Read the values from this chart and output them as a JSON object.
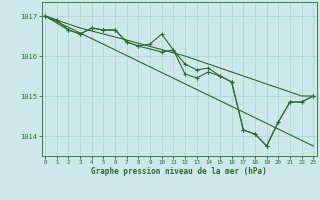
{
  "title": "Graphe pression niveau de la mer (hPa)",
  "background_color": "#cce8e8",
  "line_color": "#2d6a2d",
  "grid_color": "#b0d0d0",
  "series1": [
    [
      0,
      1017.0
    ],
    [
      1,
      1016.9
    ],
    [
      2,
      1016.65
    ],
    [
      3,
      1016.55
    ],
    [
      4,
      1016.7
    ],
    [
      5,
      1016.65
    ],
    [
      6,
      1016.65
    ],
    [
      7,
      1016.35
    ],
    [
      8,
      1016.25
    ],
    [
      9,
      1016.3
    ],
    [
      10,
      1016.55
    ],
    [
      11,
      1016.15
    ],
    [
      12,
      1015.8
    ],
    [
      13,
      1015.65
    ],
    [
      14,
      1015.7
    ],
    [
      15,
      1015.5
    ],
    [
      16,
      1015.35
    ],
    [
      17,
      1014.15
    ],
    [
      18,
      1014.05
    ],
    [
      19,
      1013.75
    ],
    [
      20,
      1014.35
    ],
    [
      21,
      1014.85
    ],
    [
      22,
      1014.85
    ],
    [
      23,
      1015.0
    ]
  ],
  "series2": [
    [
      0,
      1017.0
    ],
    [
      2,
      1016.65
    ],
    [
      3,
      1016.55
    ],
    [
      4,
      1016.7
    ],
    [
      5,
      1016.65
    ],
    [
      6,
      1016.65
    ],
    [
      7,
      1016.35
    ],
    [
      8,
      1016.25
    ],
    [
      10,
      1016.1
    ],
    [
      11,
      1016.15
    ],
    [
      12,
      1015.55
    ],
    [
      13,
      1015.45
    ],
    [
      14,
      1015.6
    ],
    [
      15,
      1015.5
    ],
    [
      16,
      1015.35
    ],
    [
      17,
      1014.15
    ],
    [
      18,
      1014.05
    ],
    [
      19,
      1013.75
    ],
    [
      20,
      1014.35
    ],
    [
      21,
      1014.85
    ],
    [
      22,
      1014.85
    ],
    [
      23,
      1015.0
    ]
  ],
  "series3_smooth": [
    [
      0,
      1017.0
    ],
    [
      3,
      1016.7
    ],
    [
      7,
      1016.4
    ],
    [
      12,
      1016.0
    ],
    [
      17,
      1015.5
    ],
    [
      22,
      1015.0
    ],
    [
      23,
      1015.0
    ]
  ],
  "series4_diagonal": [
    [
      0,
      1017.0
    ],
    [
      23,
      1013.75
    ]
  ],
  "ylim": [
    1013.5,
    1017.35
  ],
  "yticks": [
    1014,
    1015,
    1016,
    1017
  ],
  "xlim": [
    -0.3,
    23.3
  ],
  "xticks": [
    0,
    1,
    2,
    3,
    4,
    5,
    6,
    7,
    8,
    9,
    10,
    11,
    12,
    13,
    14,
    15,
    16,
    17,
    18,
    19,
    20,
    21,
    22,
    23
  ]
}
